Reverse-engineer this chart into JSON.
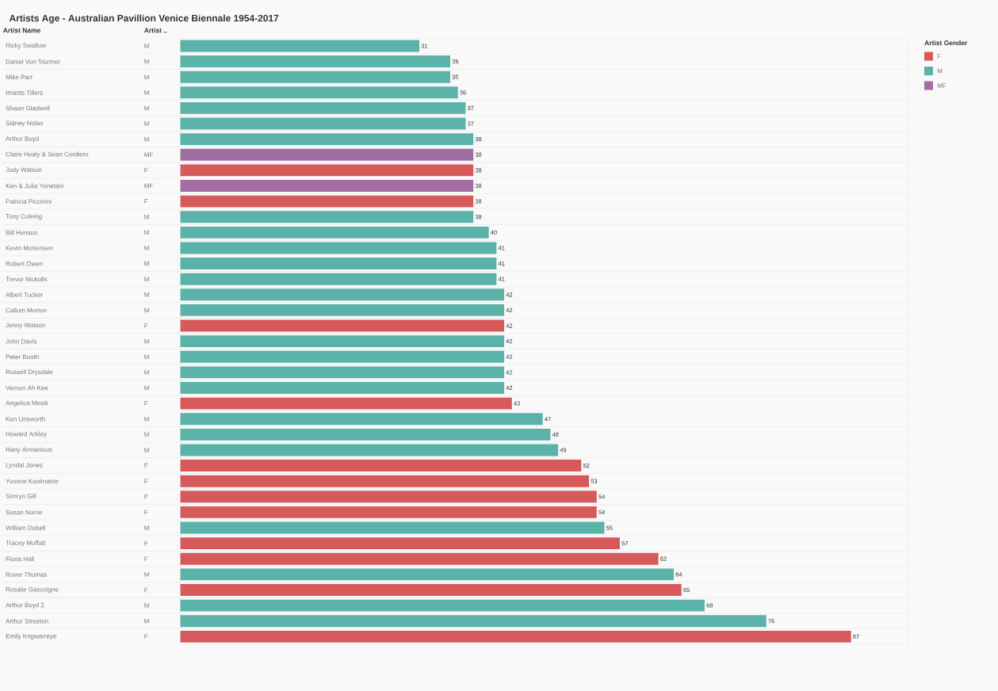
{
  "chart_data": {
    "type": "bar",
    "orientation": "horizontal",
    "stacked": true,
    "data_labels": true,
    "legend": "top right",
    "title": "Artists Age - Australian Pavillion Venice Biennale 1954-2017",
    "legend_title": "Artist Gender",
    "categories": [
      "Ricky Swallow",
      "Daniel Von Sturmer",
      "Mike Parr",
      "Imants Tillers",
      "Shaun Gladwell",
      "Sidney Nolan",
      "Arthur Boyd",
      "Claire Healy & Sean Cordiero",
      "Judy Watson",
      "Ken & Julia Yonetani",
      "Patricia Piccinini",
      "Tony Coleing",
      "Bill Henson",
      "Kevin Mortensen",
      "Robert Owen",
      "Trevor Nickolls",
      "Albert Tucker",
      "Callum Morton",
      "Jenny Watson",
      "John Davis",
      "Peter Booth",
      "Russell Drysdale",
      "Vernon Ah Kee",
      "Angelica Mesiti",
      "Ken Unsworth",
      "Howard Arkley",
      "Hany Armanious",
      "Lyndal Jones",
      "Yvonne Koolmatrie",
      "Simryn Gill",
      "Susan Norrie",
      "William Dobell",
      "Tracey Moffatt",
      "Fiona Hall",
      "Rover Thomas",
      "Rosalie Gascoigne",
      "Arthur Boyd 2",
      "Arthur Streeton",
      "Emily Kngwarreye"
    ],
    "series": [
      {
        "name": "F",
        "color": "#d65a5a",
        "values": [
          null,
          null,
          null,
          null,
          null,
          null,
          null,
          null,
          38,
          null,
          38,
          null,
          null,
          null,
          null,
          null,
          null,
          null,
          42,
          null,
          null,
          null,
          null,
          43,
          null,
          null,
          null,
          52,
          53,
          54,
          54,
          null,
          57,
          62,
          null,
          65,
          null,
          null,
          87
        ]
      },
      {
        "name": "M",
        "color": "#5ab2a8",
        "values": [
          31,
          35,
          35,
          36,
          37,
          37,
          38,
          null,
          null,
          null,
          null,
          38,
          40,
          41,
          41,
          41,
          42,
          42,
          null,
          42,
          42,
          42,
          42,
          null,
          47,
          48,
          49,
          null,
          null,
          null,
          null,
          55,
          null,
          null,
          64,
          null,
          68,
          76,
          null
        ]
      },
      {
        "name": "MF",
        "color": "#a06ea0",
        "values": [
          null,
          null,
          null,
          null,
          null,
          null,
          null,
          38,
          null,
          38,
          null,
          null,
          null,
          null,
          null,
          null,
          null,
          null,
          null,
          null,
          null,
          null,
          null,
          null,
          null,
          null,
          null,
          null,
          null,
          null,
          null,
          null,
          null,
          null,
          null,
          null,
          null,
          null,
          null
        ]
      }
    ],
    "annotations": [
      "Artist Name",
      "Artist ..",
      "M",
      "M",
      "M",
      "M",
      "M",
      "M",
      "M",
      "MF",
      "F",
      "MF",
      "F",
      "M",
      "M",
      "M",
      "M",
      "M",
      "M",
      "M",
      "F",
      "M",
      "M",
      "M",
      "M",
      "F",
      "M",
      "M",
      "M",
      "F",
      "F",
      "F",
      "F",
      "M",
      "F",
      "F",
      "M",
      "F",
      "M",
      "M",
      "F"
    ]
  }
}
